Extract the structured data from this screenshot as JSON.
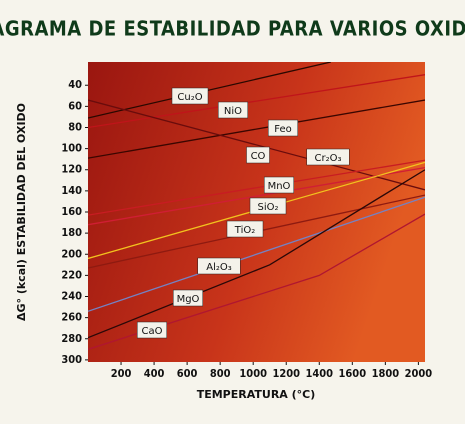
{
  "chart_data": {
    "type": "line",
    "title": "DIAGRAMA DE ESTABILIDAD PARA VARIOS OXIDOS",
    "x_label": "TEMPERATURA (°C)",
    "y_label": "ΔG° (kcal) ESTABILIDAD DEL OXIDO",
    "xlim": [
      0,
      2040
    ],
    "ylim": [
      18,
      302
    ],
    "y_inverted": true,
    "xticks": [
      200,
      400,
      600,
      800,
      1000,
      1200,
      1400,
      1600,
      1800,
      2000
    ],
    "yticks": [
      40,
      60,
      80,
      100,
      120,
      140,
      160,
      180,
      200,
      220,
      240,
      260,
      280,
      300
    ],
    "series": [
      {
        "name": "Cu₂O",
        "color": "#2a0800",
        "x": [
          0,
          1470
        ],
        "values": [
          71,
          18
        ]
      },
      {
        "name": "NiO",
        "color": "#c0141a",
        "x": [
          0,
          2040
        ],
        "values": [
          80,
          30
        ]
      },
      {
        "name": "Feo",
        "color": "#3a0600",
        "x": [
          0,
          2040
        ],
        "values": [
          109,
          54
        ]
      },
      {
        "name": "CO",
        "color": "#6a0c0c",
        "x": [
          0,
          2040
        ],
        "values": [
          54,
          139
        ]
      },
      {
        "name": "Cr₂O₃",
        "color": "#c81c22",
        "x": [
          0,
          2040
        ],
        "values": [
          163,
          111
        ]
      },
      {
        "name": "MnO",
        "color": "#d01e34",
        "x": [
          0,
          2040
        ],
        "values": [
          172,
          118
        ]
      },
      {
        "name": "SiO₂",
        "color": "#f2c21e",
        "x": [
          0,
          2040
        ],
        "values": [
          204,
          113
        ]
      },
      {
        "name": "TiO₂",
        "color": "#8e1a10",
        "x": [
          0,
          2040
        ],
        "values": [
          213,
          144
        ]
      },
      {
        "name": "Al₂O₃",
        "color": "#7482c4",
        "x": [
          0,
          2040
        ],
        "values": [
          254,
          146
        ]
      },
      {
        "name": "MgO",
        "color": "#2a0808",
        "x": [
          0,
          1100,
          2040
        ],
        "values": [
          279,
          210,
          120
        ]
      },
      {
        "name": "CaO",
        "color": "#b01630",
        "x": [
          0,
          1400,
          2040
        ],
        "values": [
          290,
          220,
          162
        ]
      }
    ]
  }
}
